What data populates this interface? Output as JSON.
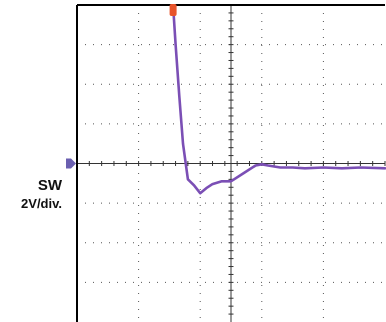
{
  "channel": {
    "name": "SW",
    "scale": "2V/div.",
    "marker_color": "#6a5fb0"
  },
  "trigger_marker_color": "#e8542b",
  "chart_data": {
    "type": "line",
    "title": "",
    "xlabel": "",
    "ylabel": "",
    "grid": true,
    "divisions": {
      "x": 5,
      "y": 8
    },
    "xlim": [
      0,
      5
    ],
    "ylim": [
      -4,
      4
    ],
    "units": {
      "y": "div"
    },
    "series": [
      {
        "color": "#7b4fb5",
        "x": [
          1.56,
          1.6,
          1.66,
          1.72,
          1.8,
          1.9,
          2.0,
          2.1,
          2.2,
          2.35,
          2.5,
          2.7,
          2.9,
          3.0,
          3.1,
          3.3,
          3.5,
          3.7,
          4.0,
          4.3,
          4.6,
          5.0
        ],
        "y": [
          3.98,
          3.0,
          1.7,
          0.5,
          -0.4,
          -0.55,
          -0.75,
          -0.62,
          -0.52,
          -0.45,
          -0.45,
          -0.25,
          -0.05,
          -0.02,
          -0.05,
          -0.1,
          -0.1,
          -0.12,
          -0.1,
          -0.12,
          -0.1,
          -0.12
        ]
      }
    ]
  }
}
